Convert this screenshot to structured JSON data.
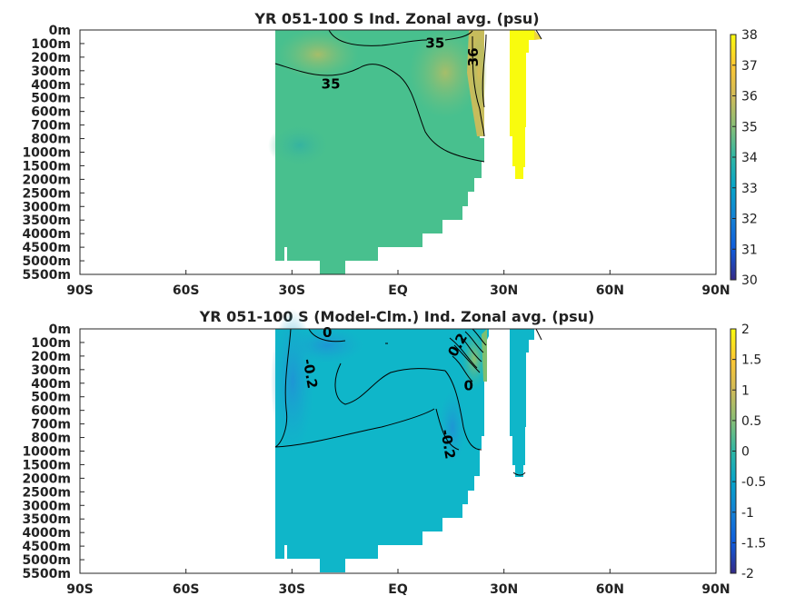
{
  "colors": {
    "land": "#ffffff",
    "frame": "#262626",
    "contour": "#000000",
    "parula": [
      "#352a87",
      "#0f5cdd",
      "#1481d6",
      "#06a4ca",
      "#2eb7a4",
      "#87bf77",
      "#d1bb59",
      "#fec832",
      "#f9fb0e"
    ]
  },
  "chart_data": [
    {
      "type": "heatmap",
      "title": "YR 051-100 S Ind. Zonal avg. (psu)",
      "x_ticks": [
        "90S",
        "60S",
        "30S",
        "EQ",
        "30N",
        "60N",
        "90N"
      ],
      "x_tick_values": [
        -90,
        -60,
        -30,
        0,
        30,
        60,
        90
      ],
      "xlim": [
        -90,
        90
      ],
      "y_ticks": [
        "0m",
        "100m",
        "200m",
        "300m",
        "400m",
        "500m",
        "600m",
        "700m",
        "800m",
        "1000m",
        "1500m",
        "2000m",
        "2500m",
        "3000m",
        "3500m",
        "4000m",
        "4500m",
        "5000m",
        "5500m"
      ],
      "colorbar": {
        "min": 30,
        "max": 38,
        "ticks": [
          "38",
          "37",
          "36",
          "35",
          "34",
          "33",
          "32",
          "31",
          "30"
        ]
      },
      "contour_labels": [
        {
          "text": "35",
          "lat": 10.5,
          "level": 1.0
        },
        {
          "text": "36",
          "lat": 21.5,
          "level": 2.0
        },
        {
          "text": "35",
          "lat": -19,
          "level": 4.0
        }
      ]
    },
    {
      "type": "heatmap",
      "title": "YR 051-100 S (Model-Clm.) Ind. Zonal avg. (psu)",
      "x_ticks": [
        "90S",
        "60S",
        "30S",
        "EQ",
        "30N",
        "60N",
        "90N"
      ],
      "x_tick_values": [
        -90,
        -60,
        -30,
        0,
        30,
        60,
        90
      ],
      "xlim": [
        -90,
        90
      ],
      "y_ticks": [
        "0m",
        "100m",
        "200m",
        "300m",
        "400m",
        "500m",
        "600m",
        "700m",
        "800m",
        "1000m",
        "1500m",
        "2000m",
        "2500m",
        "3000m",
        "3500m",
        "4000m",
        "4500m",
        "5000m",
        "5500m"
      ],
      "colorbar": {
        "min": -2,
        "max": 2,
        "ticks": [
          "2",
          "1.5",
          "1",
          "0.5",
          "0",
          "-0.5",
          "-1",
          "-1.5",
          "-2"
        ]
      },
      "contour_labels": [
        {
          "text": "0",
          "lat": -20,
          "level": 0.3
        },
        {
          "text": "-0.2",
          "lat": -25,
          "level": 3.3
        },
        {
          "text": "0",
          "lat": 20,
          "level": 4.2
        },
        {
          "text": "0.2",
          "lat": 17,
          "level": 1.2
        },
        {
          "text": "-0.2",
          "lat": 14,
          "level": 8.5
        }
      ]
    }
  ]
}
